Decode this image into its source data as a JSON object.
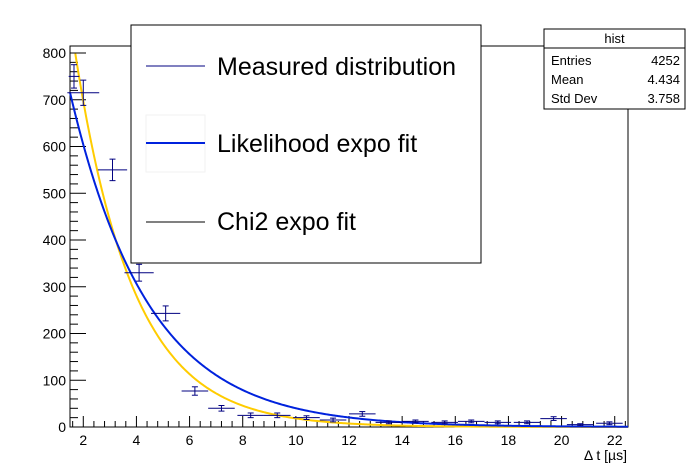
{
  "chart_data": {
    "type": "scatter",
    "title": "",
    "xlabel": "Δ t [µs]",
    "ylabel": "",
    "xlim": [
      1.5,
      22.5
    ],
    "ylim": [
      0,
      815
    ],
    "x_ticks": [
      2,
      4,
      6,
      8,
      10,
      12,
      14,
      16,
      18,
      20,
      22
    ],
    "y_ticks": [
      0,
      100,
      200,
      300,
      400,
      500,
      600,
      700,
      800
    ],
    "grid": false,
    "legend_position": "top-center",
    "series": [
      {
        "name": "Measured distribution",
        "kind": "points",
        "color": "#000080",
        "points": [
          {
            "x": 1.65,
            "y": 750,
            "xerr": 0.2,
            "yerr": 25
          },
          {
            "x": 2.0,
            "y": 715,
            "xerr": 0.6,
            "yerr": 27
          },
          {
            "x": 3.1,
            "y": 550,
            "xerr": 0.55,
            "yerr": 23
          },
          {
            "x": 4.1,
            "y": 330,
            "xerr": 0.55,
            "yerr": 18
          },
          {
            "x": 5.1,
            "y": 243,
            "xerr": 0.55,
            "yerr": 16
          },
          {
            "x": 6.2,
            "y": 77,
            "xerr": 0.5,
            "yerr": 9
          },
          {
            "x": 7.2,
            "y": 40,
            "xerr": 0.5,
            "yerr": 6
          },
          {
            "x": 8.3,
            "y": 25,
            "xerr": 0.5,
            "yerr": 5
          },
          {
            "x": 9.3,
            "y": 25,
            "xerr": 0.5,
            "yerr": 5
          },
          {
            "x": 10.4,
            "y": 20,
            "xerr": 0.5,
            "yerr": 4
          },
          {
            "x": 11.4,
            "y": 15,
            "xerr": 0.5,
            "yerr": 4
          },
          {
            "x": 12.5,
            "y": 28,
            "xerr": 0.5,
            "yerr": 5
          },
          {
            "x": 13.5,
            "y": 10,
            "xerr": 0.5,
            "yerr": 3
          },
          {
            "x": 14.5,
            "y": 12,
            "xerr": 0.5,
            "yerr": 3
          },
          {
            "x": 15.6,
            "y": 10,
            "xerr": 0.5,
            "yerr": 3
          },
          {
            "x": 16.6,
            "y": 12,
            "xerr": 0.5,
            "yerr": 3
          },
          {
            "x": 17.6,
            "y": 10,
            "xerr": 0.5,
            "yerr": 3
          },
          {
            "x": 18.7,
            "y": 10,
            "xerr": 0.5,
            "yerr": 3
          },
          {
            "x": 19.7,
            "y": 18,
            "xerr": 0.5,
            "yerr": 4
          },
          {
            "x": 20.7,
            "y": 5,
            "xerr": 0.5,
            "yerr": 2
          },
          {
            "x": 21.8,
            "y": 8,
            "xerr": 0.5,
            "yerr": 3
          }
        ]
      },
      {
        "name": "Likelihood expo fit",
        "kind": "curve",
        "color": "#0022dd",
        "amplitude": 1190,
        "tau": 2.95
      },
      {
        "name": "Chi2 expo fit",
        "kind": "curve",
        "color": "#ffcc00",
        "amplitude": 1730,
        "tau": 2.2
      }
    ],
    "stats_box": {
      "title": "hist",
      "rows": [
        {
          "label": "Entries",
          "value": "4252"
        },
        {
          "label": "Mean",
          "value": "4.434"
        },
        {
          "label": "Std Dev",
          "value": "3.758"
        }
      ]
    }
  }
}
